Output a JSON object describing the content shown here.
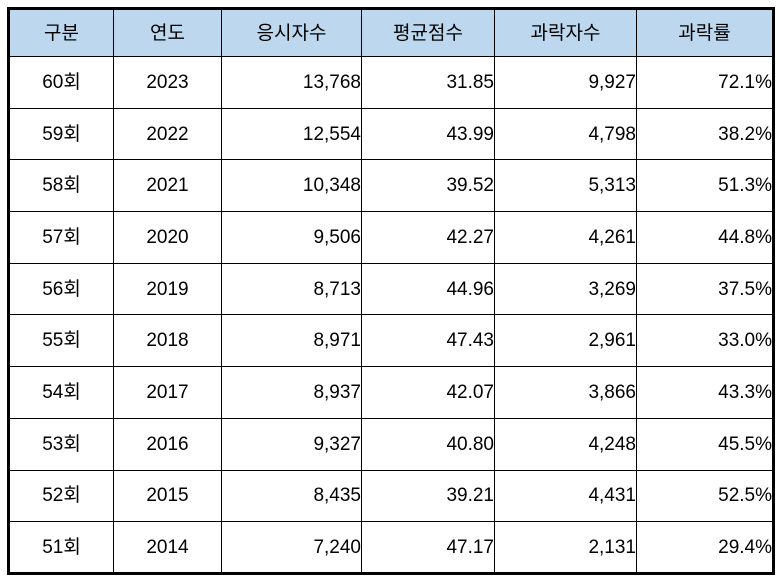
{
  "table": {
    "columns": [
      "구분",
      "연도",
      "응시자수",
      "평균점수",
      "과락자수",
      "과락률"
    ],
    "rows": [
      [
        "60회",
        "2023",
        "13,768",
        "31.85",
        "9,927",
        "72.1%"
      ],
      [
        "59회",
        "2022",
        "12,554",
        "43.99",
        "4,798",
        "38.2%"
      ],
      [
        "58회",
        "2021",
        "10,348",
        "39.52",
        "5,313",
        "51.3%"
      ],
      [
        "57회",
        "2020",
        "9,506",
        "42.27",
        "4,261",
        "44.8%"
      ],
      [
        "56회",
        "2019",
        "8,713",
        "44.96",
        "3,269",
        "37.5%"
      ],
      [
        "55회",
        "2018",
        "8,971",
        "47.43",
        "2,961",
        "33.0%"
      ],
      [
        "54회",
        "2017",
        "8,937",
        "42.07",
        "3,866",
        "43.3%"
      ],
      [
        "53회",
        "2016",
        "9,327",
        "40.80",
        "4,248",
        "45.5%"
      ],
      [
        "52회",
        "2015",
        "8,435",
        "39.21",
        "4,431",
        "52.5%"
      ],
      [
        "51회",
        "2014",
        "7,240",
        "47.17",
        "2,131",
        "29.4%"
      ]
    ],
    "colors": {
      "header_bg": "#bdd7ee",
      "border": "#000000",
      "text": "#000000",
      "row_bg": "#ffffff"
    }
  }
}
